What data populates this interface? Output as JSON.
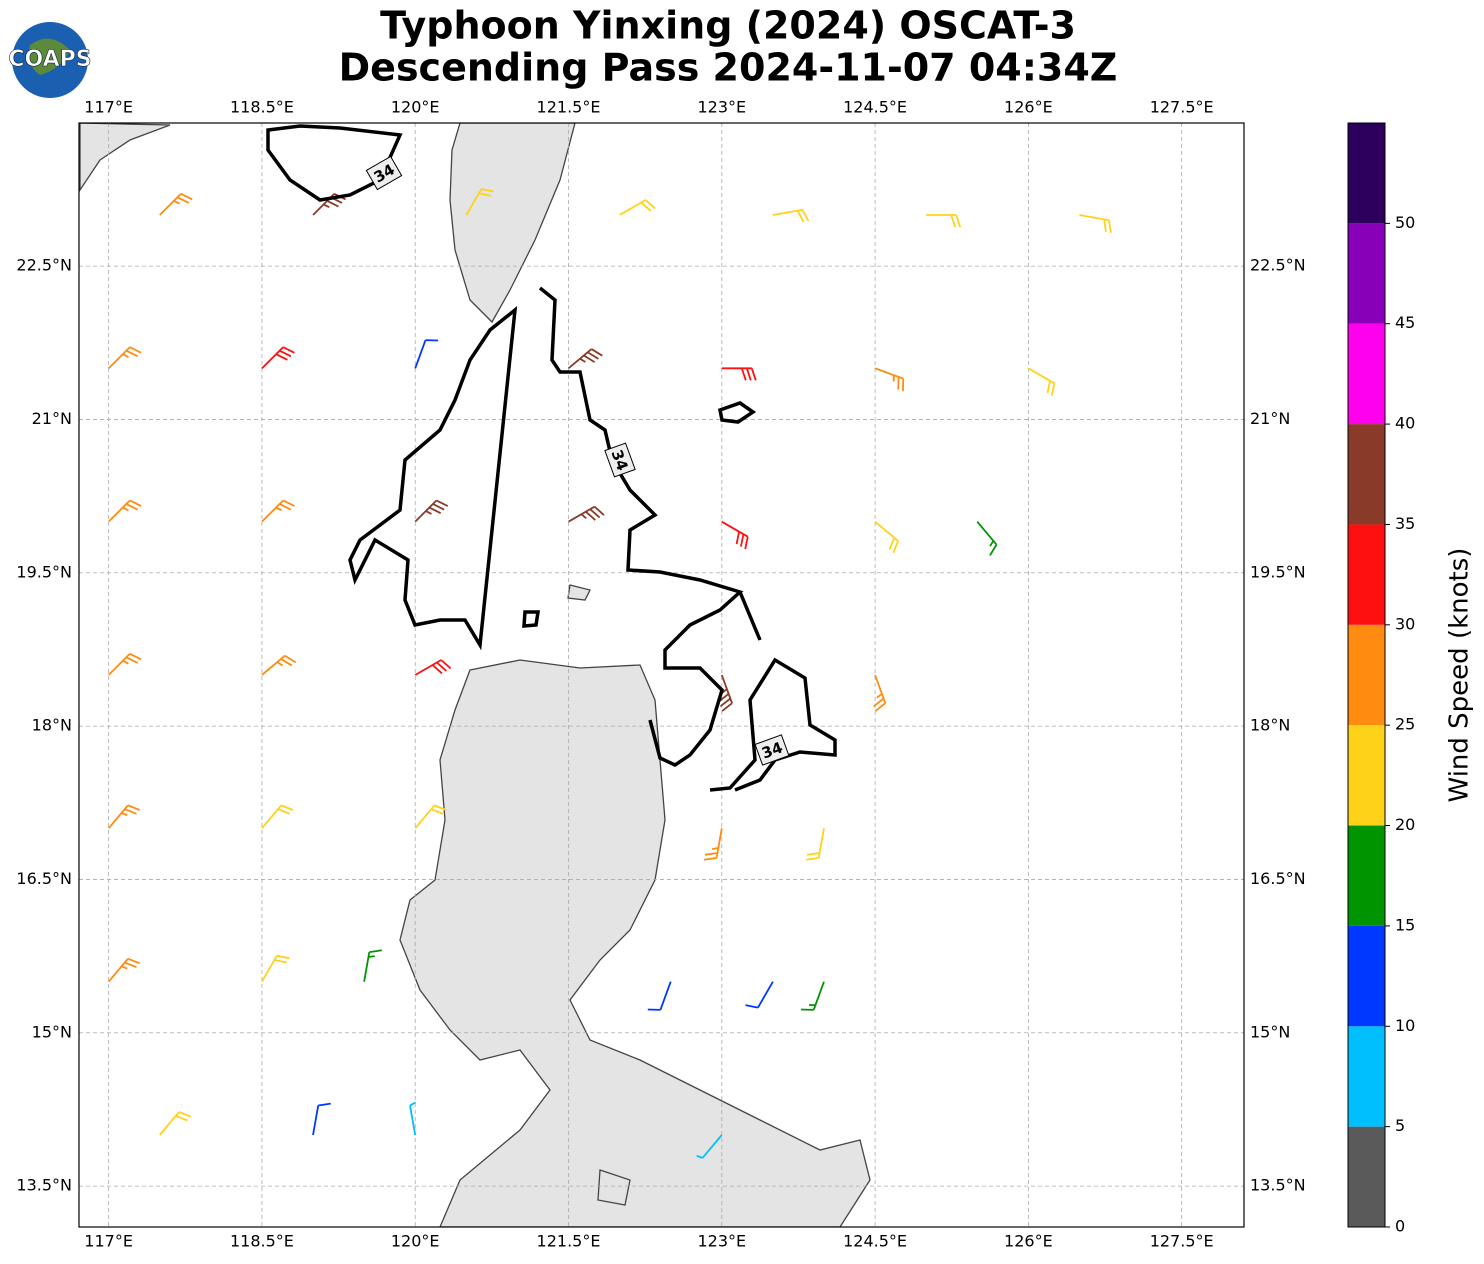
{
  "chart_data": {
    "type": "barbs",
    "title": "Typhoon Yinxing (2024) OSCAT-3",
    "subtitle": "Descending Pass 2024-11-07 04:34Z",
    "logo": "COAPS",
    "xlim": [
      116.71,
      128.11
    ],
    "ylim": [
      13.1,
      23.9
    ],
    "xticks": [
      {
        "value": 117,
        "label": "117°E"
      },
      {
        "value": 118.5,
        "label": "118.5°E"
      },
      {
        "value": 120,
        "label": "120°E"
      },
      {
        "value": 121.5,
        "label": "121.5°E"
      },
      {
        "value": 123,
        "label": "123°E"
      },
      {
        "value": 124.5,
        "label": "124.5°E"
      },
      {
        "value": 126,
        "label": "126°E"
      },
      {
        "value": 127.5,
        "label": "127.5°E"
      }
    ],
    "yticks": [
      {
        "value": 13.5,
        "label": "13.5°N"
      },
      {
        "value": 15,
        "label": "15°N"
      },
      {
        "value": 16.5,
        "label": "16.5°N"
      },
      {
        "value": 18,
        "label": "18°N"
      },
      {
        "value": 19.5,
        "label": "19.5°N"
      },
      {
        "value": 21,
        "label": "21°N"
      },
      {
        "value": 22.5,
        "label": "22.5°N"
      }
    ],
    "grid": true,
    "contour_labels": [
      "34",
      "34",
      "34"
    ],
    "colorbar": {
      "label": "Wind Speed (knots)",
      "levels": [
        0,
        5,
        10,
        15,
        20,
        25,
        30,
        35,
        40,
        45,
        50,
        55
      ],
      "colors": [
        "#5a5a5a",
        "#00bfff",
        "#0038ff",
        "#009400",
        "#ffd21a",
        "#ff8c10",
        "#ff1010",
        "#8a3a28",
        "#ff00ee",
        "#8800b8",
        "#2e005e"
      ],
      "ticks": [
        0,
        5,
        10,
        15,
        20,
        25,
        30,
        35,
        40,
        45,
        50
      ]
    },
    "barbs": {
      "lon": [
        117.5,
        119,
        120.5,
        122,
        123.5,
        125,
        126.5,
        117,
        118.5,
        120,
        121.5,
        123,
        124.5,
        126,
        117,
        118.5,
        120,
        121.5,
        123,
        124.5,
        125.5,
        117,
        118.5,
        120,
        123,
        124.5,
        117,
        118.5,
        120,
        123,
        124,
        117,
        118.5,
        119.5,
        122.5,
        123.5,
        124,
        117.5,
        119,
        120,
        123
      ],
      "lat": [
        23,
        23,
        23,
        23,
        23,
        23,
        23,
        21.5,
        21.5,
        21.5,
        21.5,
        21.5,
        21.5,
        21.5,
        20,
        20,
        20,
        20,
        20,
        20,
        20,
        18.5,
        18.5,
        18.5,
        18.5,
        18.5,
        17,
        17,
        17,
        17,
        17,
        15.5,
        15.5,
        15.5,
        15.5,
        15.5,
        15.5,
        14,
        14,
        14,
        14
      ],
      "speed": [
        27,
        37,
        20,
        23,
        22,
        22,
        22,
        27,
        32,
        13,
        38,
        33,
        28,
        22,
        27,
        27,
        37,
        38,
        33,
        23,
        18,
        27,
        27,
        32,
        37,
        28,
        27,
        23,
        23,
        27,
        22,
        27,
        22,
        18,
        13,
        13,
        18,
        22,
        13,
        8,
        8
      ],
      "direction": [
        45,
        45,
        30,
        60,
        80,
        90,
        100,
        45,
        45,
        20,
        50,
        90,
        110,
        120,
        45,
        45,
        45,
        60,
        120,
        130,
        140,
        45,
        50,
        60,
        160,
        160,
        40,
        40,
        40,
        190,
        190,
        40,
        30,
        10,
        200,
        210,
        200,
        40,
        10,
        350,
        220
      ]
    }
  }
}
